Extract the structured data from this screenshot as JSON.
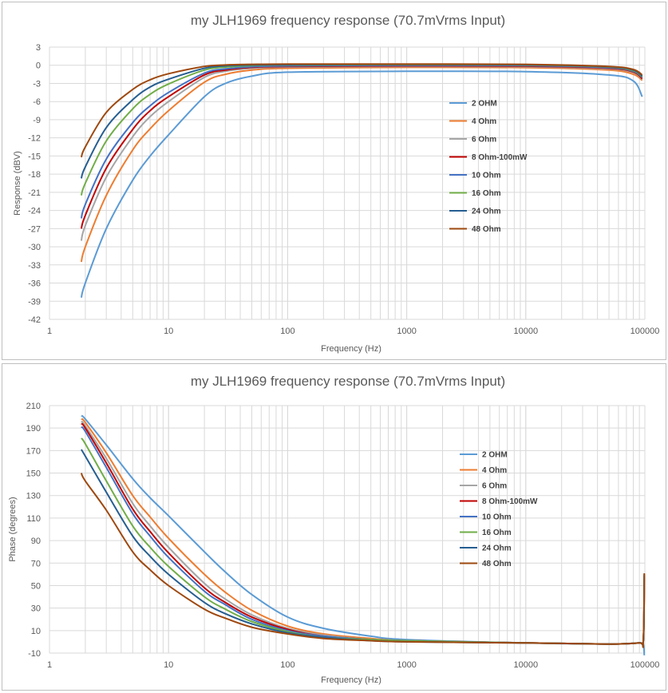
{
  "chart_data": [
    {
      "type": "line",
      "title": "my JLH1969 frequency response (70.7mVrms Input)",
      "xlabel": "Frequency (Hz)",
      "ylabel": "Response (dBV)",
      "xscale": "log",
      "xlim": [
        1,
        100000
      ],
      "ylim": [
        -42,
        3
      ],
      "xticks": [
        "1",
        "10",
        "100",
        "1000",
        "10000",
        "100000"
      ],
      "yticks": [
        "3",
        "0",
        "-3",
        "-6",
        "-9",
        "-12",
        "-15",
        "-18",
        "-21",
        "-24",
        "-27",
        "-30",
        "-33",
        "-36",
        "-39",
        "-42"
      ],
      "grid": "vertical log minor gridlines, horizontal major gridlines",
      "legend_position": "right, inside plot",
      "series": [
        {
          "name": "2 OHM",
          "color": "#5b9bd5",
          "x": [
            1.85,
            2,
            3,
            5,
            7,
            10,
            20,
            30,
            50,
            100,
            1000,
            10000,
            50000,
            80000,
            95000
          ],
          "y": [
            -38.4,
            -36,
            -27,
            -19,
            -15,
            -11.5,
            -5.2,
            -3,
            -1.8,
            -1.15,
            -1,
            -1.05,
            -1.6,
            -2.6,
            -5.2
          ]
        },
        {
          "name": "4 Ohm",
          "color": "#ed7d31",
          "x": [
            1.85,
            2,
            3,
            5,
            7,
            10,
            20,
            30,
            50,
            100,
            1000,
            10000,
            50000,
            80000,
            95000
          ],
          "y": [
            -32.5,
            -30,
            -21.5,
            -14,
            -10.5,
            -7.5,
            -2.8,
            -1.5,
            -0.8,
            -0.5,
            -0.35,
            -0.4,
            -0.8,
            -1.5,
            -2.5
          ]
        },
        {
          "name": "6 Ohm",
          "color": "#a5a5a5",
          "x": [
            1.85,
            2,
            3,
            5,
            7,
            10,
            20,
            30,
            50,
            100,
            1000,
            10000,
            50000,
            80000,
            95000
          ],
          "y": [
            -29,
            -26.5,
            -18.5,
            -11.8,
            -8.5,
            -6,
            -2,
            -1,
            -0.5,
            -0.3,
            -0.2,
            -0.25,
            -0.6,
            -1.2,
            -2.3
          ]
        },
        {
          "name": "8 Ohm-100mW",
          "color": "#c00000",
          "x": [
            1.85,
            2,
            3,
            5,
            7,
            10,
            20,
            30,
            50,
            100,
            1000,
            10000,
            50000,
            80000,
            95000
          ],
          "y": [
            -27,
            -24.8,
            -17,
            -10.6,
            -7.5,
            -5.2,
            -1.6,
            -0.8,
            -0.35,
            -0.2,
            -0.1,
            -0.15,
            -0.5,
            -1.1,
            -2.2
          ]
        },
        {
          "name": "10 Ohm",
          "color": "#4472c4",
          "x": [
            1.85,
            2,
            3,
            5,
            7,
            10,
            20,
            30,
            50,
            100,
            1000,
            10000,
            50000,
            80000,
            95000
          ],
          "y": [
            -25.3,
            -23,
            -15.5,
            -9.5,
            -6.7,
            -4.5,
            -1.3,
            -0.6,
            -0.25,
            -0.1,
            0,
            -0.05,
            -0.4,
            -1,
            -2
          ]
        },
        {
          "name": "16 Ohm",
          "color": "#70ad47",
          "x": [
            1.85,
            2,
            3,
            5,
            7,
            10,
            20,
            30,
            50,
            100,
            1000,
            10000,
            50000,
            80000,
            95000
          ],
          "y": [
            -21.5,
            -19.5,
            -12.5,
            -7.2,
            -4.8,
            -3.1,
            -0.8,
            -0.3,
            -0.05,
            0.05,
            0.1,
            0.05,
            -0.3,
            -0.9,
            -1.9
          ]
        },
        {
          "name": "24 Ohm",
          "color": "#255e91",
          "x": [
            1.85,
            2,
            3,
            5,
            7,
            10,
            20,
            30,
            50,
            100,
            1000,
            10000,
            50000,
            80000,
            95000
          ],
          "y": [
            -18.7,
            -16.8,
            -10.3,
            -5.7,
            -3.6,
            -2.3,
            -0.5,
            -0.1,
            0.05,
            0.1,
            0.15,
            0.1,
            -0.25,
            -0.8,
            -1.8
          ]
        },
        {
          "name": "48 Ohm",
          "color": "#9e480e",
          "x": [
            1.85,
            2,
            3,
            5,
            7,
            10,
            20,
            30,
            50,
            100,
            1000,
            10000,
            50000,
            80000,
            95000
          ],
          "y": [
            -15.2,
            -13.5,
            -7.8,
            -4,
            -2.4,
            -1.4,
            -0.2,
            0.05,
            0.15,
            0.2,
            0.2,
            0.15,
            -0.2,
            -0.7,
            -1.6
          ]
        }
      ]
    },
    {
      "type": "line",
      "title": "my JLH1969 frequency response (70.7mVrms Input)",
      "xlabel": "Frequency (Hz)",
      "ylabel": "Phase (degrees)",
      "xscale": "log",
      "xlim": [
        1,
        100000
      ],
      "ylim": [
        -10,
        210
      ],
      "xticks": [
        "1",
        "10",
        "100",
        "1000",
        "10000",
        "100000"
      ],
      "yticks": [
        "210",
        "190",
        "170",
        "150",
        "130",
        "110",
        "90",
        "70",
        "50",
        "30",
        "10",
        "-10"
      ],
      "grid": "vertical log minor gridlines, horizontal major gridlines",
      "legend_position": "right, inside plot",
      "series": [
        {
          "name": "2 OHM",
          "color": "#5b9bd5",
          "x": [
            1.85,
            2,
            3,
            5,
            7,
            10,
            20,
            30,
            50,
            100,
            200,
            500,
            1000,
            10000,
            50000,
            90000,
            97000,
            99000
          ],
          "y": [
            201,
            198,
            175,
            145,
            128,
            112,
            80,
            62,
            42,
            22,
            12,
            5,
            2,
            -1,
            -2,
            -1,
            -2,
            -12
          ]
        },
        {
          "name": "4 Ohm",
          "color": "#ed7d31",
          "x": [
            1.85,
            2,
            3,
            5,
            7,
            10,
            20,
            30,
            50,
            100,
            200,
            500,
            1000,
            10000,
            50000,
            90000,
            97000,
            99000
          ],
          "y": [
            198,
            195,
            168,
            130,
            111,
            92,
            60,
            44,
            28,
            14,
            7,
            3,
            1,
            -1,
            -2,
            -1,
            0,
            55
          ]
        },
        {
          "name": "6 Ohm",
          "color": "#a5a5a5",
          "x": [
            1.85,
            2,
            3,
            5,
            7,
            10,
            20,
            30,
            50,
            100,
            200,
            500,
            1000,
            10000,
            50000,
            90000,
            97000,
            99000
          ],
          "y": [
            196,
            192,
            163,
            123,
            103,
            84,
            52,
            38,
            24,
            12,
            6,
            2,
            1,
            -1,
            -2,
            -1,
            0,
            56
          ]
        },
        {
          "name": "8 Ohm-100mW",
          "color": "#c00000",
          "x": [
            1.85,
            2,
            3,
            5,
            7,
            10,
            20,
            30,
            50,
            100,
            200,
            500,
            1000,
            10000,
            50000,
            90000,
            97000,
            99000
          ],
          "y": [
            194,
            190,
            159,
            118,
            98,
            79,
            48,
            35,
            22,
            11,
            5,
            2,
            1,
            -1,
            -2,
            -1,
            0,
            58
          ]
        },
        {
          "name": "10 Ohm",
          "color": "#4472c4",
          "x": [
            1.85,
            2,
            3,
            5,
            7,
            10,
            20,
            30,
            50,
            100,
            200,
            500,
            1000,
            10000,
            50000,
            90000,
            97000,
            99000
          ],
          "y": [
            191,
            187,
            155,
            114,
            94,
            75,
            45,
            33,
            20,
            10,
            5,
            2,
            1,
            -1,
            -2,
            -1,
            0,
            59
          ]
        },
        {
          "name": "16 Ohm",
          "color": "#70ad47",
          "x": [
            1.85,
            2,
            3,
            5,
            7,
            10,
            20,
            30,
            50,
            100,
            200,
            500,
            1000,
            10000,
            50000,
            90000,
            97000,
            99000
          ],
          "y": [
            181,
            176,
            143,
            103,
            84,
            67,
            40,
            29,
            18,
            9,
            4,
            2,
            1,
            -1,
            -2,
            -1,
            0,
            60
          ]
        },
        {
          "name": "24 Ohm",
          "color": "#255e91",
          "x": [
            1.85,
            2,
            3,
            5,
            7,
            10,
            20,
            30,
            50,
            100,
            200,
            500,
            1000,
            10000,
            50000,
            90000,
            97000,
            99000
          ],
          "y": [
            171,
            165,
            133,
            94,
            76,
            60,
            35,
            25,
            16,
            8,
            4,
            1,
            0,
            -1,
            -2,
            -1,
            0,
            60
          ]
        },
        {
          "name": "48 Ohm",
          "color": "#9e480e",
          "x": [
            1.85,
            2,
            3,
            5,
            7,
            10,
            20,
            30,
            50,
            100,
            200,
            500,
            1000,
            10000,
            50000,
            90000,
            97000,
            99000
          ],
          "y": [
            150,
            143,
            117,
            80,
            64,
            50,
            29,
            21,
            13,
            7,
            3,
            1,
            0,
            -1,
            -2,
            -1,
            0,
            61
          ]
        }
      ]
    }
  ]
}
